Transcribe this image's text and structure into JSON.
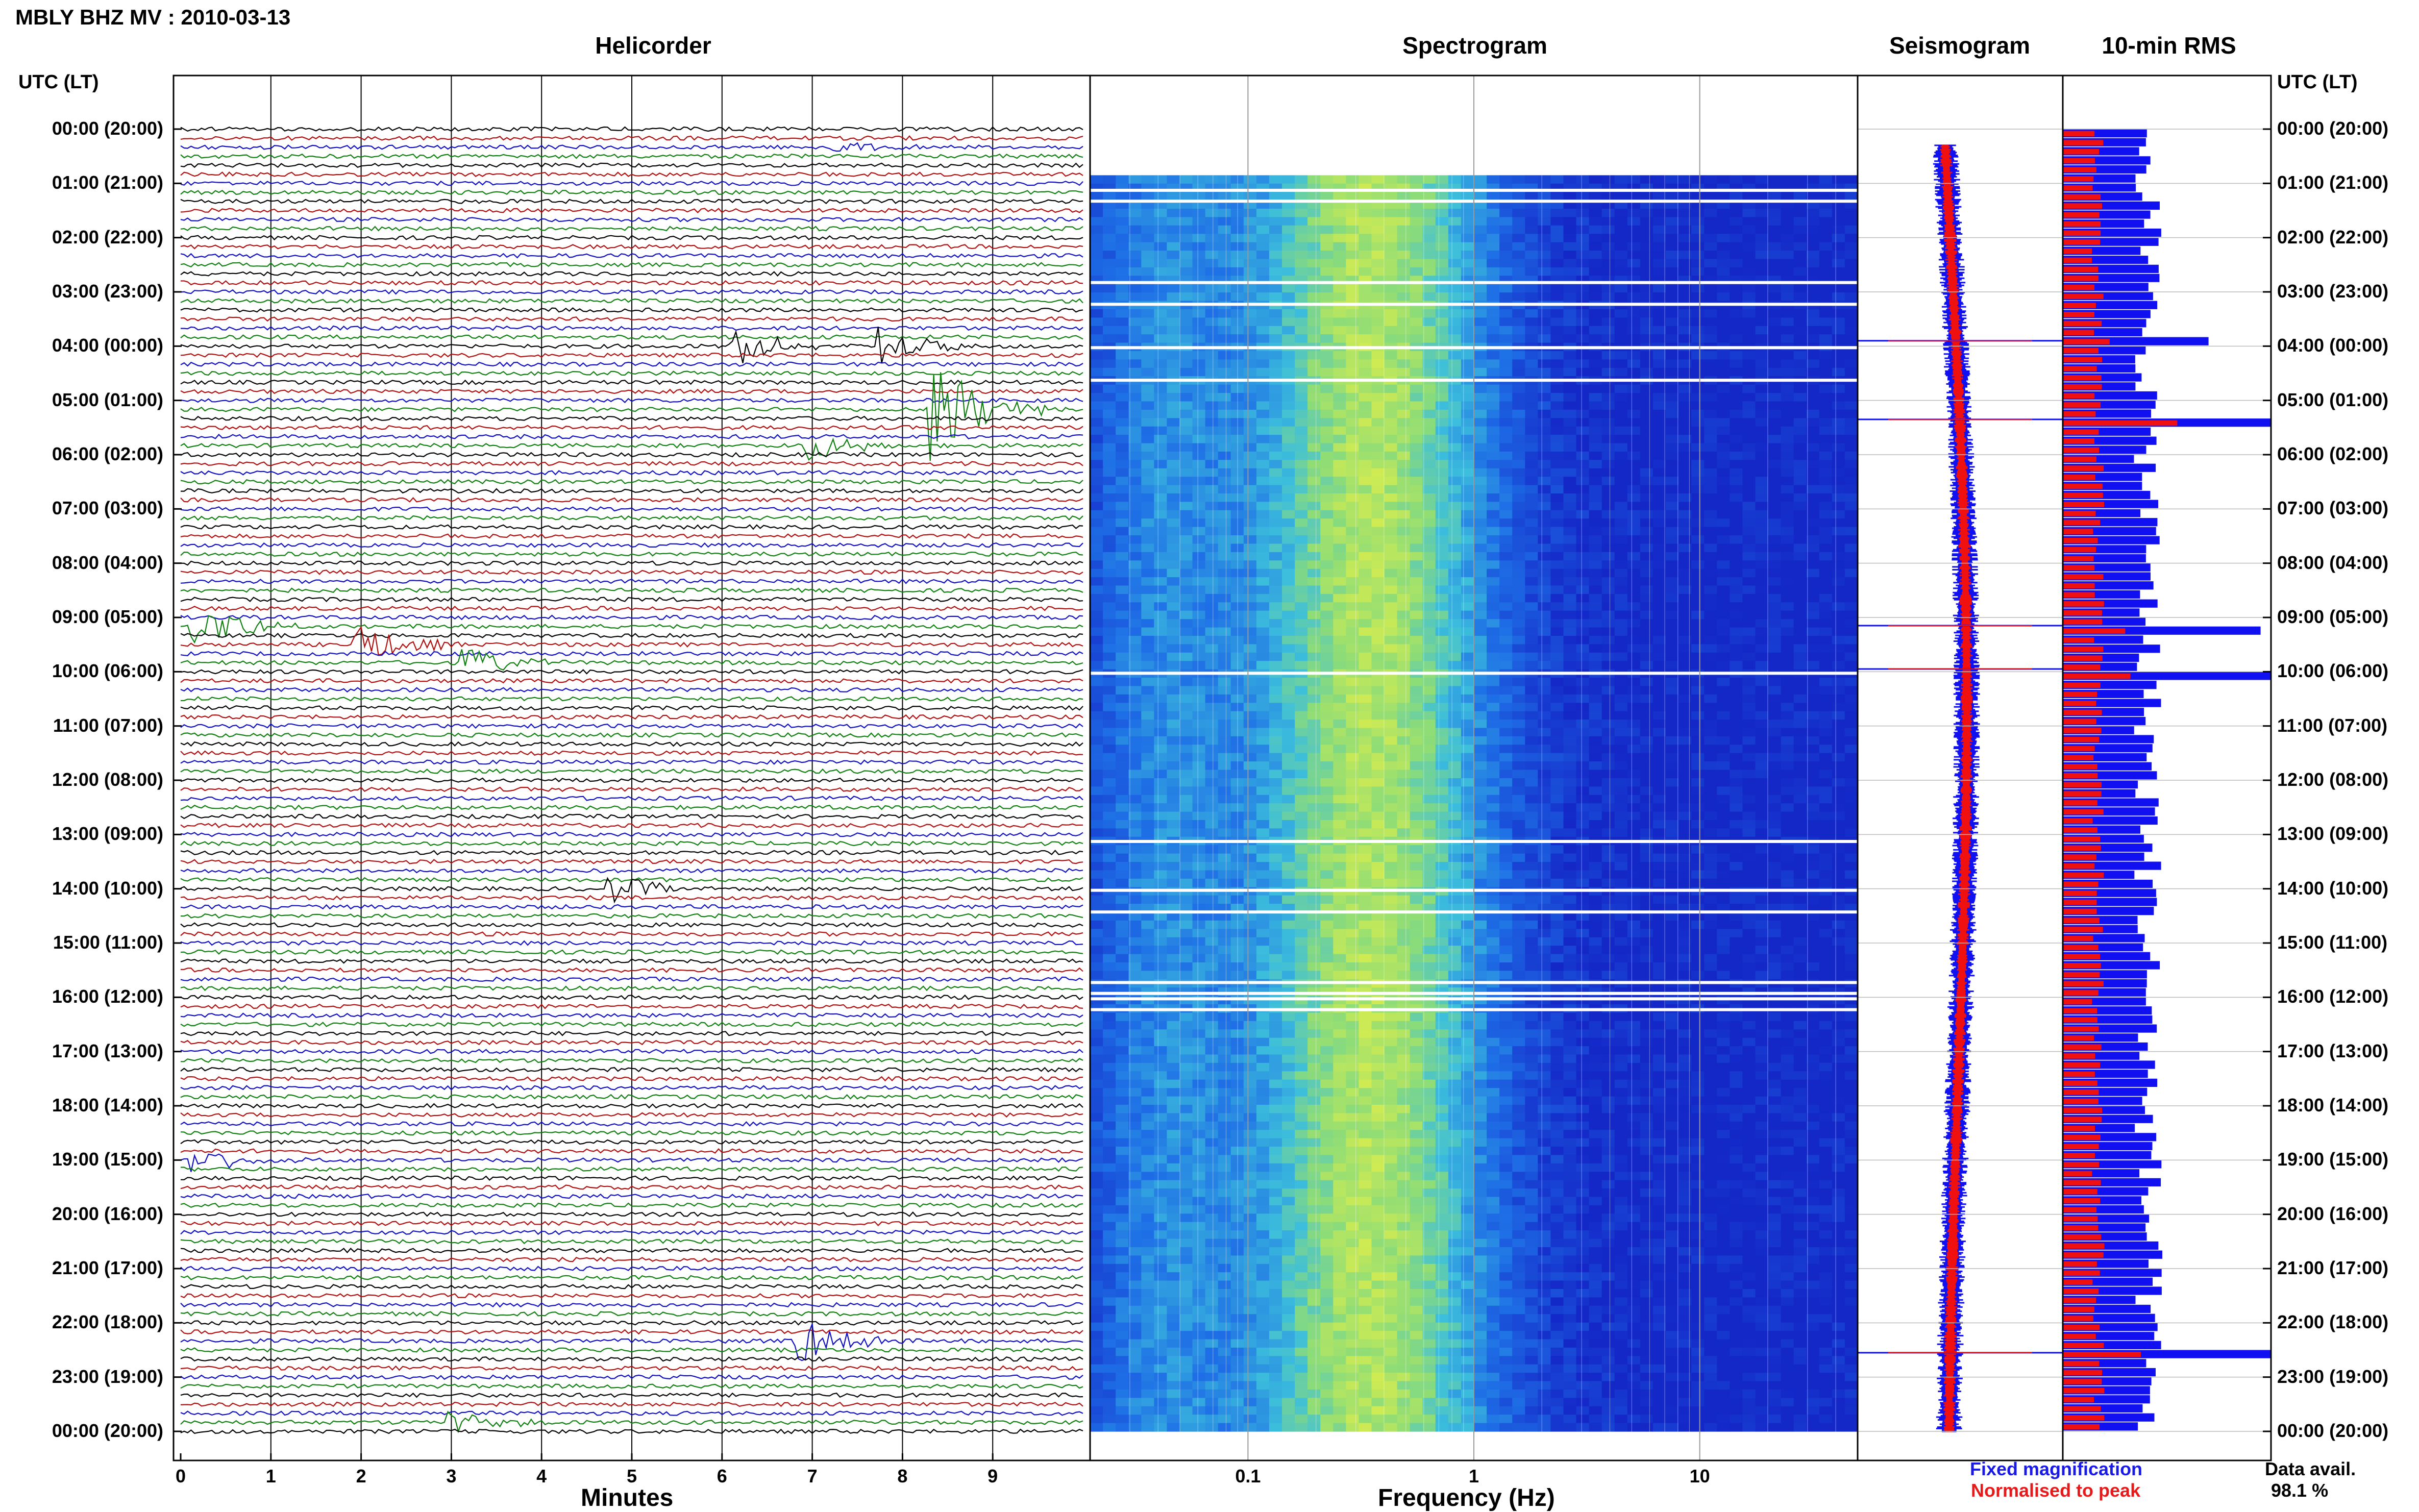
{
  "header": {
    "title": "MBLY BHZ MV : 2010-03-13"
  },
  "panels": {
    "helicorder": "Helicorder",
    "spectrogram": "Spectrogram",
    "seismogram": "Seismogram",
    "rms": "10-min RMS"
  },
  "time_axis": {
    "header_left": "UTC (LT)",
    "header_right": "UTC (LT)",
    "labels": [
      "00:00 (20:00)",
      "01:00 (21:00)",
      "02:00 (22:00)",
      "03:00 (23:00)",
      "04:00 (00:00)",
      "05:00 (01:00)",
      "06:00 (02:00)",
      "07:00 (03:00)",
      "08:00 (04:00)",
      "09:00 (05:00)",
      "10:00 (06:00)",
      "11:00 (07:00)",
      "12:00 (08:00)",
      "13:00 (09:00)",
      "14:00 (10:00)",
      "15:00 (11:00)",
      "16:00 (12:00)",
      "17:00 (13:00)",
      "18:00 (14:00)",
      "19:00 (15:00)",
      "20:00 (16:00)",
      "21:00 (17:00)",
      "22:00 (18:00)",
      "23:00 (19:00)",
      "00:00 (20:00)"
    ]
  },
  "x_axes": {
    "helicorder_label": "Minutes",
    "helicorder_ticks": [
      "0",
      "1",
      "2",
      "3",
      "4",
      "5",
      "6",
      "7",
      "8",
      "9"
    ],
    "spectrogram_label": "Frequency (Hz)",
    "spectrogram_ticks": [
      "0.1",
      "1",
      "10"
    ]
  },
  "legend": {
    "fixed": "Fixed magnification",
    "normalised": "Normalised to peak",
    "avail_label": "Data avail.",
    "avail_value": "98.1 %"
  },
  "colors": {
    "trace_cycle": [
      "#000000",
      "#b01010",
      "#1010c0",
      "#108010"
    ],
    "rms_fixed": "#1010f0",
    "rms_norm": "#f01010"
  },
  "chart_data": [
    {
      "type": "line",
      "title": "Helicorder",
      "xlabel": "Minutes",
      "xlim": [
        0,
        10
      ],
      "y_label": "UTC (LT)",
      "traces_per_hour": 6,
      "hours": 24,
      "events": [
        {
          "hour": 0.3,
          "minute": 7.2,
          "amp": 0.4
        },
        {
          "hour": 4.0,
          "minute": 6.2,
          "amp": 1.2
        },
        {
          "hour": 4.0,
          "minute": 7.8,
          "amp": 1.2
        },
        {
          "hour": 5.2,
          "minute": 8.4,
          "amp": 3.5
        },
        {
          "hour": 5.8,
          "minute": 7.0,
          "amp": 1.0
        },
        {
          "hour": 9.1,
          "minute": 0.2,
          "amp": 1.6
        },
        {
          "hour": 9.5,
          "minute": 2.0,
          "amp": 1.5
        },
        {
          "hour": 9.9,
          "minute": 3.2,
          "amp": 1.0
        },
        {
          "hour": 14.0,
          "minute": 4.8,
          "amp": 1.0
        },
        {
          "hour": 19.0,
          "minute": 0.2,
          "amp": 1.0
        },
        {
          "hour": 22.3,
          "minute": 6.9,
          "amp": 1.6
        },
        {
          "hour": 23.9,
          "minute": 3.0,
          "amp": 0.8
        }
      ]
    },
    {
      "type": "heatmap",
      "title": "Spectrogram",
      "xlabel": "Frequency (Hz)",
      "x_scale": "log",
      "xlim": [
        0.02,
        50
      ],
      "y_label": "UTC (LT)"
    },
    {
      "type": "line",
      "title": "Seismogram",
      "y_label": "UTC (LT)"
    },
    {
      "type": "bar",
      "title": "10-min RMS",
      "series": [
        {
          "name": "Fixed magnification"
        },
        {
          "name": "Normalised to peak"
        }
      ],
      "hours": 24,
      "bars_per_hour": 6,
      "peaks": [
        {
          "hour": 5.35,
          "fixed": 1.0,
          "norm": 1.0
        },
        {
          "hour": 9.15,
          "fixed": 0.95,
          "norm": 0.5
        },
        {
          "hour": 9.95,
          "fixed": 1.0,
          "norm": 0.55
        },
        {
          "hour": 22.55,
          "fixed": 1.0,
          "norm": 0.65
        },
        {
          "hour": 3.9,
          "fixed": 0.7,
          "norm": 0.35
        }
      ]
    }
  ]
}
